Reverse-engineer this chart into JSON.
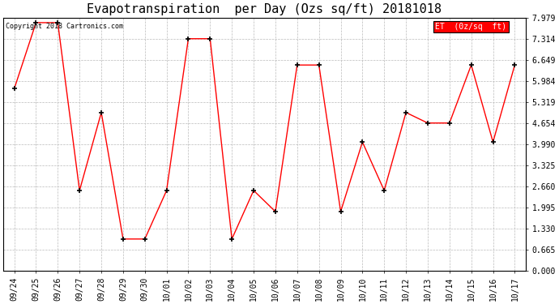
{
  "title": "Evapotranspiration  per Day (Ozs sq/ft) 20181018",
  "x_labels": [
    "09/24",
    "09/25",
    "09/26",
    "09/27",
    "09/28",
    "09/29",
    "09/30",
    "10/01",
    "10/02",
    "10/03",
    "10/04",
    "10/05",
    "10/06",
    "10/07",
    "10/08",
    "10/09",
    "10/10",
    "10/11",
    "10/12",
    "10/13",
    "10/14",
    "10/15",
    "10/16",
    "10/17"
  ],
  "y_values": [
    5.737,
    7.82,
    7.82,
    2.527,
    4.987,
    0.997,
    0.997,
    2.527,
    7.314,
    7.314,
    0.997,
    2.527,
    1.862,
    6.484,
    6.484,
    1.862,
    4.055,
    2.527,
    4.987,
    4.655,
    4.655,
    6.484,
    4.055,
    6.484
  ],
  "line_color": "red",
  "marker_color": "black",
  "marker": "+",
  "legend_label": "ET  (0z/sq  ft)",
  "legend_bg": "red",
  "legend_text_color": "white",
  "copyright_text": "Copyright 2018 Cartronics.com",
  "y_ticks": [
    0.0,
    0.665,
    1.33,
    1.995,
    2.66,
    3.325,
    3.99,
    4.654,
    5.319,
    5.984,
    6.649,
    7.314,
    7.979
  ],
  "ylim": [
    0.0,
    7.979
  ],
  "background_color": "white",
  "plot_bg_color": "white",
  "grid_color": "#bbbbbb",
  "title_fontsize": 11,
  "axis_fontsize": 7,
  "copyright_fontsize": 6,
  "legend_fontsize": 7
}
